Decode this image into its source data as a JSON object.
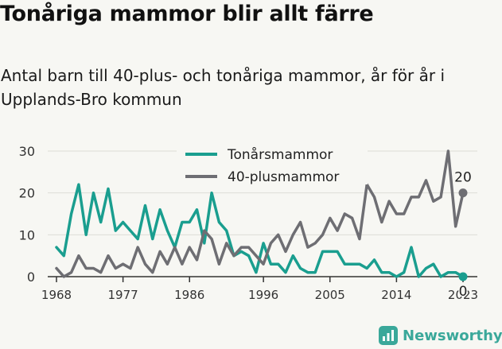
{
  "title": "Tonåriga mammor blir allt färre",
  "subtitle": "Antal barn till 40-plus- och tonåriga mammor, år för år i Upplands-Bro kommun",
  "brand": {
    "name": "Newsworthy",
    "icon": "bar-chart-icon",
    "color": "#3aa89a"
  },
  "chart_data": {
    "type": "line",
    "x_tick_labels": [
      "1968",
      "1977",
      "1986",
      "1996",
      "2005",
      "2014",
      "2023"
    ],
    "y_tick_labels": [
      "0",
      "10",
      "20",
      "30"
    ],
    "xlim": [
      1968,
      2023
    ],
    "ylim": [
      0,
      30
    ],
    "grid": true,
    "legend_position": "top-center",
    "x": [
      1968,
      1969,
      1970,
      1971,
      1972,
      1973,
      1974,
      1975,
      1976,
      1977,
      1978,
      1979,
      1980,
      1981,
      1982,
      1983,
      1984,
      1985,
      1986,
      1987,
      1988,
      1989,
      1990,
      1991,
      1992,
      1993,
      1994,
      1995,
      1996,
      1997,
      1998,
      1999,
      2000,
      2001,
      2002,
      2003,
      2004,
      2005,
      2006,
      2007,
      2008,
      2009,
      2010,
      2011,
      2012,
      2013,
      2014,
      2015,
      2016,
      2017,
      2018,
      2019,
      2020,
      2021,
      2022,
      2023
    ],
    "series": [
      {
        "name": "Tonårsmammor",
        "color": "#1a9e8f",
        "values": [
          7,
          5,
          15,
          22,
          10,
          20,
          13,
          21,
          11,
          13,
          11,
          9,
          17,
          9,
          16,
          11,
          7,
          13,
          13,
          16,
          8,
          20,
          13,
          11,
          5,
          6,
          5,
          1,
          8,
          3,
          3,
          1,
          5,
          2,
          1,
          1,
          6,
          6,
          6,
          3,
          3,
          3,
          2,
          4,
          1,
          1,
          0,
          1,
          7,
          0,
          2,
          3,
          0,
          1,
          1,
          0
        ],
        "end_label": "0"
      },
      {
        "name": "40-plusmammor",
        "color": "#6e6e73",
        "values": [
          2,
          0,
          1,
          5,
          2,
          2,
          1,
          5,
          2,
          3,
          2,
          7,
          3,
          1,
          6,
          3,
          7,
          3,
          7,
          4,
          11,
          9,
          3,
          8,
          5,
          7,
          7,
          5,
          3,
          8,
          10,
          6,
          10,
          13,
          7,
          8,
          10,
          14,
          11,
          15,
          14,
          9,
          22,
          19,
          13,
          18,
          15,
          15,
          19,
          19,
          23,
          18,
          19,
          30,
          12,
          20
        ],
        "end_label": "20"
      }
    ]
  }
}
